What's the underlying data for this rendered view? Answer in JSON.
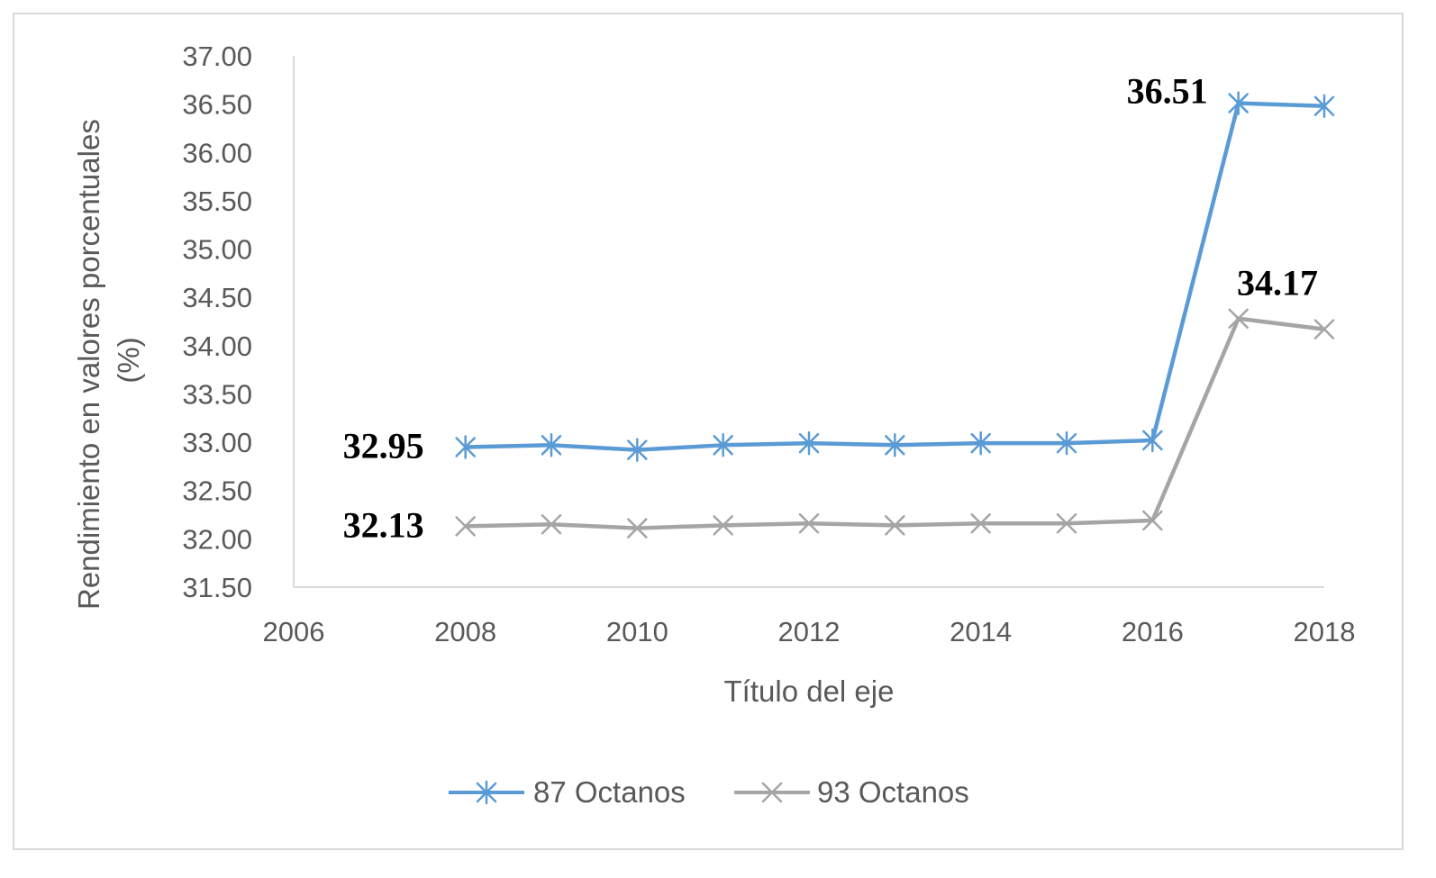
{
  "chart_data": {
    "type": "line",
    "title": "",
    "xlabel": "Título del eje",
    "ylabel": "Rendimiento en valores porcentuales (%)",
    "ylabel_lines": [
      "Rendimiento en valores porcentuales",
      "(%)"
    ],
    "xlim": [
      2006,
      2018
    ],
    "ylim": [
      31.5,
      37.0
    ],
    "x_ticks": [
      2006,
      2008,
      2010,
      2012,
      2014,
      2016,
      2018
    ],
    "x_tick_labels": [
      "2006",
      "2008",
      "2010",
      "2012",
      "2014",
      "2016",
      "2018"
    ],
    "y_ticks": [
      31.5,
      32.0,
      32.5,
      33.0,
      33.5,
      34.0,
      34.5,
      35.0,
      35.5,
      36.0,
      36.5,
      37.0
    ],
    "y_tick_labels": [
      "31.50",
      "32.00",
      "32.50",
      "33.00",
      "33.50",
      "34.00",
      "34.50",
      "35.00",
      "35.50",
      "36.00",
      "36.50",
      "37.00"
    ],
    "grid": false,
    "legend_position": "bottom",
    "x": [
      2008,
      2009,
      2010,
      2011,
      2012,
      2013,
      2014,
      2015,
      2016,
      2017,
      2018
    ],
    "series": [
      {
        "name": "87 Octanos",
        "color": "#5b9bd5",
        "marker": "star",
        "values": [
          32.95,
          32.97,
          32.92,
          32.97,
          32.99,
          32.97,
          32.99,
          32.99,
          33.02,
          36.51,
          36.48
        ],
        "labels": [
          {
            "index": 0,
            "text": "32.95"
          },
          {
            "index": 9,
            "text": "36.51"
          }
        ]
      },
      {
        "name": "93 Octanos",
        "color": "#a5a5a5",
        "marker": "x",
        "values": [
          32.13,
          32.15,
          32.11,
          32.14,
          32.16,
          32.14,
          32.16,
          32.16,
          32.19,
          34.28,
          34.17
        ],
        "labels": [
          {
            "index": 0,
            "text": "32.13"
          },
          {
            "index": 10,
            "text": "34.17"
          }
        ]
      }
    ]
  }
}
